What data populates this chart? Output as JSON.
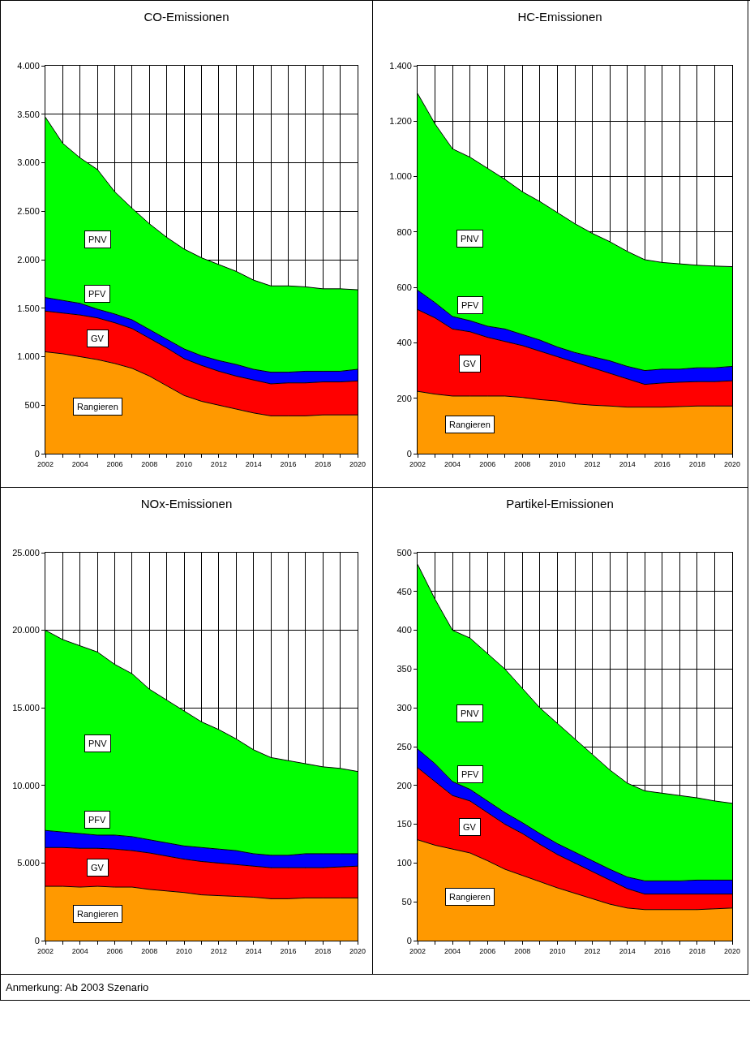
{
  "chart_data": [
    {
      "type": "area",
      "title": "CO-Emissionen",
      "stacked": true,
      "grid": true,
      "legend": false,
      "x": [
        2002,
        2003,
        2004,
        2005,
        2006,
        2007,
        2008,
        2009,
        2010,
        2011,
        2012,
        2013,
        2014,
        2015,
        2016,
        2017,
        2018,
        2019,
        2020
      ],
      "xlim": [
        2002,
        2020
      ],
      "xticks": [
        2002,
        {
          "value": 2003,
          "label": null
        },
        2004,
        {
          "value": 2005,
          "label": null
        },
        2006,
        {
          "value": 2007,
          "label": null
        },
        2008,
        {
          "value": 2009,
          "label": null
        },
        2010,
        {
          "value": 2011,
          "label": null
        },
        2012,
        {
          "value": 2013,
          "label": null
        },
        2014,
        {
          "value": 2015,
          "label": null
        },
        2016,
        {
          "value": 2017,
          "label": null
        },
        2018,
        {
          "value": 2019,
          "label": null
        },
        2020
      ],
      "ylim": [
        0,
        4000
      ],
      "yticks": [
        0,
        500,
        {
          "value": 1000,
          "label": "1.000"
        },
        {
          "value": 1500,
          "label": "1.500"
        },
        {
          "value": 2000,
          "label": "2.000"
        },
        {
          "value": 2500,
          "label": "2.500"
        },
        {
          "value": 3000,
          "label": "3.000"
        },
        {
          "value": 3500,
          "label": "3.500"
        },
        {
          "value": 4000,
          "label": "4.000"
        }
      ],
      "series": [
        {
          "name": "Rangieren",
          "color": "#ff9900",
          "values": [
            1050,
            1030,
            1000,
            970,
            930,
            880,
            800,
            700,
            600,
            540,
            500,
            460,
            420,
            390,
            390,
            390,
            400,
            400,
            400
          ]
        },
        {
          "name": "GV",
          "color": "#ff0000",
          "values": [
            420,
            420,
            430,
            430,
            420,
            410,
            390,
            390,
            380,
            370,
            350,
            340,
            340,
            330,
            340,
            340,
            340,
            340,
            350
          ]
        },
        {
          "name": "PFV",
          "color": "#0000ff",
          "values": [
            140,
            130,
            120,
            90,
            90,
            90,
            90,
            90,
            100,
            100,
            110,
            120,
            110,
            120,
            110,
            120,
            110,
            110,
            120
          ]
        },
        {
          "name": "PNV",
          "color": "#00ff00",
          "values": [
            1860,
            1620,
            1500,
            1440,
            1260,
            1150,
            1090,
            1050,
            1030,
            1010,
            990,
            960,
            920,
            890,
            890,
            870,
            850,
            850,
            820
          ]
        }
      ]
    },
    {
      "type": "area",
      "title": "HC-Emissionen",
      "stacked": true,
      "grid": true,
      "legend": false,
      "x": [
        2002,
        2003,
        2004,
        2005,
        2006,
        2007,
        2008,
        2009,
        2010,
        2011,
        2012,
        2013,
        2014,
        2015,
        2016,
        2017,
        2018,
        2019,
        2020
      ],
      "xlim": [
        2002,
        2020
      ],
      "xticks": [
        2002,
        {
          "value": 2003,
          "label": null
        },
        2004,
        {
          "value": 2005,
          "label": null
        },
        2006,
        {
          "value": 2007,
          "label": null
        },
        2008,
        {
          "value": 2009,
          "label": null
        },
        2010,
        {
          "value": 2011,
          "label": null
        },
        2012,
        {
          "value": 2013,
          "label": null
        },
        2014,
        {
          "value": 2015,
          "label": null
        },
        2016,
        {
          "value": 2017,
          "label": null
        },
        2018,
        {
          "value": 2019,
          "label": null
        },
        2020
      ],
      "ylim": [
        0,
        1400
      ],
      "yticks": [
        0,
        200,
        400,
        600,
        800,
        {
          "value": 1000,
          "label": "1.000"
        },
        {
          "value": 1200,
          "label": "1.200"
        },
        {
          "value": 1400,
          "label": "1.400"
        }
      ],
      "series": [
        {
          "name": "Rangieren",
          "color": "#ff9900",
          "values": [
            225,
            215,
            208,
            208,
            208,
            208,
            203,
            195,
            190,
            180,
            175,
            172,
            168,
            168,
            168,
            170,
            172,
            172,
            172
          ]
        },
        {
          "name": "GV",
          "color": "#ff0000",
          "values": [
            295,
            275,
            242,
            232,
            212,
            197,
            187,
            175,
            160,
            150,
            135,
            118,
            102,
            82,
            87,
            88,
            88,
            88,
            91
          ]
        },
        {
          "name": "PFV",
          "color": "#0000ff",
          "values": [
            70,
            55,
            45,
            40,
            40,
            45,
            40,
            40,
            35,
            35,
            40,
            45,
            45,
            50,
            50,
            47,
            50,
            50,
            52
          ]
        },
        {
          "name": "PNV",
          "color": "#00ff00",
          "values": [
            710,
            645,
            605,
            590,
            570,
            540,
            515,
            500,
            485,
            465,
            445,
            430,
            415,
            400,
            385,
            380,
            370,
            367,
            360
          ]
        }
      ]
    },
    {
      "type": "area",
      "title": "NOx-Emissionen",
      "stacked": true,
      "grid": true,
      "legend": false,
      "x": [
        2002,
        2003,
        2004,
        2005,
        2006,
        2007,
        2008,
        2009,
        2010,
        2011,
        2012,
        2013,
        2014,
        2015,
        2016,
        2017,
        2018,
        2019,
        2020
      ],
      "xlim": [
        2002,
        2020
      ],
      "xticks": [
        2002,
        {
          "value": 2003,
          "label": null
        },
        2004,
        {
          "value": 2005,
          "label": null
        },
        2006,
        {
          "value": 2007,
          "label": null
        },
        2008,
        {
          "value": 2009,
          "label": null
        },
        2010,
        {
          "value": 2011,
          "label": null
        },
        2012,
        {
          "value": 2013,
          "label": null
        },
        2014,
        {
          "value": 2015,
          "label": null
        },
        2016,
        {
          "value": 2017,
          "label": null
        },
        2018,
        {
          "value": 2019,
          "label": null
        },
        2020
      ],
      "ylim": [
        0,
        25000
      ],
      "yticks": [
        0,
        {
          "value": 5000,
          "label": "5.000"
        },
        {
          "value": 10000,
          "label": "10.000"
        },
        {
          "value": 15000,
          "label": "15.000"
        },
        {
          "value": 20000,
          "label": "20.000"
        },
        {
          "value": 25000,
          "label": "25.000"
        }
      ],
      "series": [
        {
          "name": "Rangieren",
          "color": "#ff9900",
          "values": [
            3500,
            3500,
            3450,
            3500,
            3450,
            3450,
            3300,
            3200,
            3100,
            2950,
            2900,
            2850,
            2800,
            2700,
            2700,
            2750,
            2750,
            2750,
            2750
          ]
        },
        {
          "name": "GV",
          "color": "#ff0000",
          "values": [
            2500,
            2500,
            2500,
            2450,
            2450,
            2350,
            2350,
            2250,
            2150,
            2150,
            2100,
            2050,
            2000,
            2000,
            2000,
            1950,
            1950,
            2000,
            2050
          ]
        },
        {
          "name": "PFV",
          "color": "#0000ff",
          "values": [
            1100,
            1000,
            950,
            850,
            900,
            900,
            850,
            850,
            850,
            900,
            900,
            900,
            800,
            800,
            800,
            900,
            900,
            850,
            800
          ]
        },
        {
          "name": "PNV",
          "color": "#00ff00",
          "values": [
            12900,
            12400,
            12100,
            11800,
            11000,
            10500,
            9700,
            9200,
            8700,
            8100,
            7700,
            7200,
            6700,
            6300,
            6100,
            5800,
            5600,
            5500,
            5300
          ]
        }
      ]
    },
    {
      "type": "area",
      "title": "Partikel-Emissionen",
      "stacked": true,
      "grid": true,
      "legend": false,
      "x": [
        2002,
        2003,
        2004,
        2005,
        2006,
        2007,
        2008,
        2009,
        2010,
        2011,
        2012,
        2013,
        2014,
        2015,
        2016,
        2017,
        2018,
        2019,
        2020
      ],
      "xlim": [
        2002,
        2020
      ],
      "xticks": [
        2002,
        {
          "value": 2003,
          "label": null
        },
        2004,
        {
          "value": 2005,
          "label": null
        },
        2006,
        {
          "value": 2007,
          "label": null
        },
        2008,
        {
          "value": 2009,
          "label": null
        },
        2010,
        {
          "value": 2011,
          "label": null
        },
        2012,
        {
          "value": 2013,
          "label": null
        },
        2014,
        {
          "value": 2015,
          "label": null
        },
        2016,
        {
          "value": 2017,
          "label": null
        },
        2018,
        {
          "value": 2019,
          "label": null
        },
        2020
      ],
      "ylim": [
        0,
        500
      ],
      "yticks": [
        0,
        50,
        100,
        150,
        200,
        250,
        300,
        350,
        400,
        450,
        500
      ],
      "series": [
        {
          "name": "Rangieren",
          "color": "#ff9900",
          "values": [
            130,
            123,
            118,
            113,
            103,
            92,
            84,
            76,
            68,
            61,
            54,
            47,
            42,
            40,
            40,
            40,
            40,
            41,
            42
          ]
        },
        {
          "name": "GV",
          "color": "#ff0000",
          "values": [
            93,
            82,
            69,
            67,
            62,
            58,
            54,
            48,
            43,
            39,
            35,
            31,
            25,
            20,
            20,
            20,
            20,
            19,
            18
          ]
        },
        {
          "name": "PFV",
          "color": "#0000ff",
          "values": [
            24,
            23,
            18,
            15,
            15,
            15,
            14,
            14,
            14,
            14,
            14,
            14,
            15,
            17,
            17,
            17,
            18,
            18,
            18
          ]
        },
        {
          "name": "PNV",
          "color": "#00ff00",
          "values": [
            238,
            212,
            195,
            195,
            190,
            185,
            173,
            162,
            155,
            146,
            137,
            128,
            121,
            116,
            113,
            110,
            106,
            102,
            99
          ]
        }
      ],
      "annotations": [
        "Anmerkung: Ab 2003 Szenario"
      ]
    }
  ]
}
